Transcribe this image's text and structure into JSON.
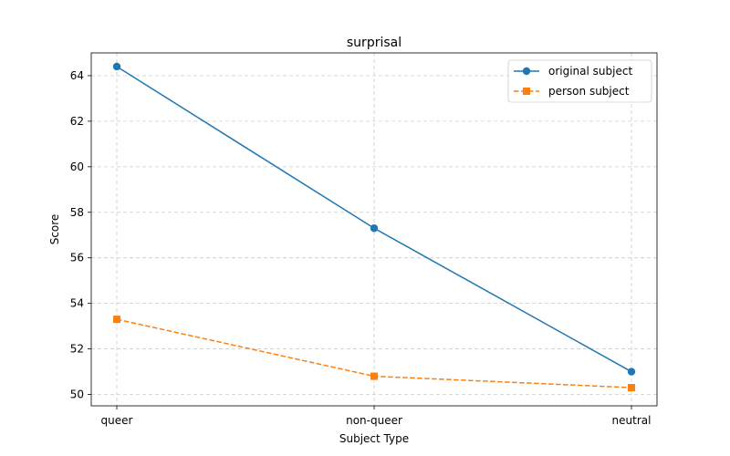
{
  "chart_data": {
    "type": "line",
    "title": "surprisal",
    "xlabel": "Subject Type",
    "ylabel": "Score",
    "categories": [
      "queer",
      "non-queer",
      "neutral"
    ],
    "ylim": [
      49.5,
      65.0
    ],
    "yticks": [
      50,
      52,
      54,
      56,
      58,
      60,
      62,
      64
    ],
    "grid": true,
    "legend_position": "top-right",
    "series": [
      {
        "name": "original subject",
        "values": [
          64.4,
          57.3,
          51.0
        ],
        "color": "#1f77b4",
        "marker": "circle",
        "linestyle": "solid"
      },
      {
        "name": "person subject",
        "values": [
          53.3,
          50.8,
          50.3
        ],
        "color": "#ff7f0e",
        "marker": "square",
        "linestyle": "dashed"
      }
    ]
  }
}
